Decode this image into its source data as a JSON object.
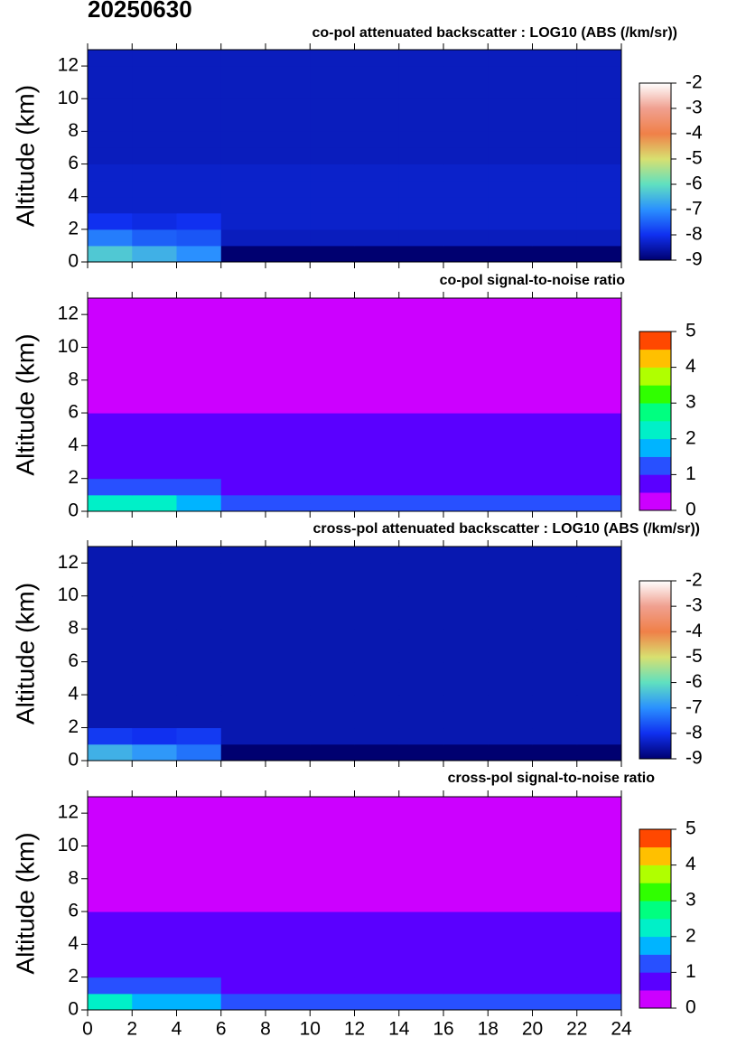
{
  "title": "20250630",
  "chart_data": [
    {
      "type": "heatmap",
      "title": "co-pol attenuated backscatter : LOG10 (ABS (/km/sr))",
      "ylabel": "Altitude (km)",
      "scale": "continuous",
      "show_xtick_labels": false,
      "xlim": [
        0,
        24
      ],
      "xticks": [
        0,
        2,
        4,
        6,
        8,
        10,
        12,
        14,
        16,
        18,
        20,
        22,
        24
      ],
      "ylim": [
        0,
        13
      ],
      "yticks": [
        0,
        2,
        4,
        6,
        8,
        10,
        12
      ],
      "xbins": [
        0,
        2,
        4,
        6,
        8,
        10,
        12,
        14,
        16,
        18,
        20,
        22,
        24
      ],
      "ybins": [
        0,
        1,
        2,
        3,
        4,
        5,
        6,
        7,
        8,
        9,
        10,
        11,
        12,
        13
      ],
      "zlim": [
        -9,
        -2
      ],
      "zticks": [
        -9,
        -8,
        -7,
        -6,
        -5,
        -4,
        -3,
        -2
      ],
      "colors": [
        "#000070",
        "#1030f0",
        "#2a90ff",
        "#60e0c0",
        "#d8e070",
        "#f08048",
        "#f0a090",
        "#ffffff"
      ],
      "z": [
        [
          -6.3,
          -6.6,
          -7.0,
          -9,
          -9,
          -9,
          -9,
          -9,
          -9,
          -9,
          -9,
          -9
        ],
        [
          -7.2,
          -7.5,
          -7.6,
          -8.4,
          -8.4,
          -8.4,
          -8.4,
          -8.4,
          -8.4,
          -8.4,
          -8.4,
          -8.4
        ],
        [
          -8.0,
          -8.1,
          -8.0,
          -8.3,
          -8.3,
          -8.3,
          -8.3,
          -8.3,
          -8.3,
          -8.3,
          -8.3,
          -8.3
        ],
        [
          -8.3,
          -8.3,
          -8.3,
          -8.3,
          -8.3,
          -8.3,
          -8.3,
          -8.3,
          -8.3,
          -8.3,
          -8.3,
          -8.3
        ],
        [
          -8.3,
          -8.3,
          -8.3,
          -8.3,
          -8.3,
          -8.3,
          -8.3,
          -8.3,
          -8.3,
          -8.3,
          -8.3,
          -8.3
        ],
        [
          -8.3,
          -8.3,
          -8.3,
          -8.3,
          -8.3,
          -8.3,
          -8.3,
          -8.3,
          -8.3,
          -8.3,
          -8.3,
          -8.3
        ],
        [
          -8.4,
          -8.4,
          -8.4,
          -8.4,
          -8.4,
          -8.4,
          -8.4,
          -8.4,
          -8.4,
          -8.4,
          -8.4,
          -8.4
        ],
        [
          -8.4,
          -8.4,
          -8.4,
          -8.4,
          -8.4,
          -8.4,
          -8.4,
          -8.4,
          -8.4,
          -8.4,
          -8.4,
          -8.4
        ],
        [
          -8.4,
          -8.4,
          -8.4,
          -8.4,
          -8.4,
          -8.4,
          -8.4,
          -8.4,
          -8.4,
          -8.4,
          -8.4,
          -8.4
        ],
        [
          -8.4,
          -8.4,
          -8.4,
          -8.4,
          -8.4,
          -8.4,
          -8.4,
          -8.4,
          -8.4,
          -8.4,
          -8.4,
          -8.4
        ],
        [
          -8.4,
          -8.4,
          -8.4,
          -8.4,
          -8.4,
          -8.4,
          -8.4,
          -8.4,
          -8.4,
          -8.4,
          -8.4,
          -8.4
        ],
        [
          -8.4,
          -8.4,
          -8.4,
          -8.4,
          -8.4,
          -8.4,
          -8.4,
          -8.4,
          -8.4,
          -8.4,
          -8.4,
          -8.4
        ],
        [
          -8.4,
          -8.4,
          -8.4,
          -8.4,
          -8.4,
          -8.4,
          -8.4,
          -8.4,
          -8.4,
          -8.4,
          -8.4,
          -8.4
        ]
      ]
    },
    {
      "type": "heatmap",
      "title": "co-pol signal-to-noise ratio",
      "ylabel": "Altitude (km)",
      "scale": "discrete",
      "show_xtick_labels": false,
      "xlim": [
        0,
        24
      ],
      "xticks": [
        0,
        2,
        4,
        6,
        8,
        10,
        12,
        14,
        16,
        18,
        20,
        22,
        24
      ],
      "ylim": [
        0,
        13
      ],
      "yticks": [
        0,
        2,
        4,
        6,
        8,
        10,
        12
      ],
      "xbins": [
        0,
        2,
        4,
        6,
        8,
        10,
        12,
        14,
        16,
        18,
        20,
        22,
        24
      ],
      "ybins": [
        0,
        1,
        2,
        3,
        4,
        5,
        6,
        7,
        8,
        9,
        10,
        11,
        12,
        13
      ],
      "zlim": [
        0,
        5
      ],
      "zticks": [
        0,
        1,
        2,
        3,
        4,
        5
      ],
      "colors": [
        "#cc00ff",
        "#5a00ff",
        "#2850ff",
        "#00b4ff",
        "#00f0c8",
        "#00ff80",
        "#30ff00",
        "#b0ff00",
        "#ffc000",
        "#ff4800"
      ],
      "z": [
        [
          2.3,
          2.2,
          1.8,
          1.1,
          1.1,
          1.1,
          1.1,
          1.1,
          1.1,
          1.1,
          1.1,
          1.1
        ],
        [
          1.3,
          1.2,
          1.2,
          0.9,
          0.9,
          0.9,
          0.9,
          0.9,
          0.9,
          0.9,
          0.9,
          0.9
        ],
        [
          0.9,
          0.9,
          0.9,
          0.9,
          0.9,
          0.9,
          0.9,
          0.9,
          0.9,
          0.9,
          0.9,
          0.9
        ],
        [
          0.8,
          0.8,
          0.8,
          0.8,
          0.8,
          0.8,
          0.8,
          0.8,
          0.8,
          0.8,
          0.8,
          0.8
        ],
        [
          0.7,
          0.7,
          0.7,
          0.7,
          0.7,
          0.7,
          0.7,
          0.7,
          0.7,
          0.7,
          0.7,
          0.7
        ],
        [
          0.6,
          0.6,
          0.6,
          0.6,
          0.6,
          0.6,
          0.6,
          0.6,
          0.6,
          0.6,
          0.6,
          0.6
        ],
        [
          0.4,
          0.4,
          0.4,
          0.4,
          0.4,
          0.4,
          0.4,
          0.4,
          0.4,
          0.4,
          0.4,
          0.4
        ],
        [
          0.3,
          0.3,
          0.3,
          0.3,
          0.3,
          0.3,
          0.3,
          0.3,
          0.3,
          0.3,
          0.3,
          0.3
        ],
        [
          0.3,
          0.3,
          0.3,
          0.3,
          0.3,
          0.3,
          0.3,
          0.3,
          0.3,
          0.3,
          0.3,
          0.3
        ],
        [
          0.2,
          0.2,
          0.2,
          0.2,
          0.2,
          0.2,
          0.2,
          0.2,
          0.2,
          0.2,
          0.2,
          0.2
        ],
        [
          0.2,
          0.2,
          0.2,
          0.2,
          0.2,
          0.2,
          0.2,
          0.2,
          0.2,
          0.2,
          0.2,
          0.2
        ],
        [
          0.2,
          0.2,
          0.2,
          0.2,
          0.2,
          0.2,
          0.2,
          0.2,
          0.2,
          0.2,
          0.2,
          0.2
        ],
        [
          0.2,
          0.2,
          0.2,
          0.2,
          0.2,
          0.2,
          0.2,
          0.2,
          0.2,
          0.2,
          0.2,
          0.2
        ]
      ]
    },
    {
      "type": "heatmap",
      "title": "cross-pol attenuated backscatter : LOG10 (ABS (/km/sr))",
      "ylabel": "Altitude (km)",
      "scale": "continuous",
      "show_xtick_labels": false,
      "xlim": [
        0,
        24
      ],
      "xticks": [
        0,
        2,
        4,
        6,
        8,
        10,
        12,
        14,
        16,
        18,
        20,
        22,
        24
      ],
      "ylim": [
        0,
        13
      ],
      "yticks": [
        0,
        2,
        4,
        6,
        8,
        10,
        12
      ],
      "xbins": [
        0,
        2,
        4,
        6,
        8,
        10,
        12,
        14,
        16,
        18,
        20,
        22,
        24
      ],
      "ybins": [
        0,
        1,
        2,
        3,
        4,
        5,
        6,
        7,
        8,
        9,
        10,
        11,
        12,
        13
      ],
      "zlim": [
        -9,
        -2
      ],
      "zticks": [
        -9,
        -8,
        -7,
        -6,
        -5,
        -4,
        -3,
        -2
      ],
      "colors": [
        "#000070",
        "#1030f0",
        "#2a90ff",
        "#60e0c0",
        "#d8e070",
        "#f08048",
        "#f0a090",
        "#ffffff"
      ],
      "z": [
        [
          -6.6,
          -6.9,
          -7.3,
          -9,
          -9,
          -9,
          -9,
          -9,
          -9,
          -9,
          -9,
          -9
        ],
        [
          -7.9,
          -8.0,
          -7.9,
          -8.5,
          -8.5,
          -8.5,
          -8.5,
          -8.5,
          -8.5,
          -8.5,
          -8.5,
          -8.5
        ],
        [
          -8.5,
          -8.5,
          -8.5,
          -8.5,
          -8.5,
          -8.5,
          -8.5,
          -8.5,
          -8.5,
          -8.5,
          -8.5,
          -8.5
        ],
        [
          -8.5,
          -8.5,
          -8.5,
          -8.5,
          -8.5,
          -8.5,
          -8.5,
          -8.5,
          -8.5,
          -8.5,
          -8.5,
          -8.5
        ],
        [
          -8.5,
          -8.5,
          -8.5,
          -8.5,
          -8.5,
          -8.5,
          -8.5,
          -8.5,
          -8.5,
          -8.5,
          -8.5,
          -8.5
        ],
        [
          -8.5,
          -8.5,
          -8.5,
          -8.5,
          -8.5,
          -8.5,
          -8.5,
          -8.5,
          -8.5,
          -8.5,
          -8.5,
          -8.5
        ],
        [
          -8.5,
          -8.5,
          -8.5,
          -8.5,
          -8.5,
          -8.5,
          -8.5,
          -8.5,
          -8.5,
          -8.5,
          -8.5,
          -8.5
        ],
        [
          -8.5,
          -8.5,
          -8.5,
          -8.5,
          -8.5,
          -8.5,
          -8.5,
          -8.5,
          -8.5,
          -8.5,
          -8.5,
          -8.5
        ],
        [
          -8.5,
          -8.5,
          -8.5,
          -8.5,
          -8.5,
          -8.5,
          -8.5,
          -8.5,
          -8.5,
          -8.5,
          -8.5,
          -8.5
        ],
        [
          -8.5,
          -8.5,
          -8.5,
          -8.5,
          -8.5,
          -8.5,
          -8.5,
          -8.5,
          -8.5,
          -8.5,
          -8.5,
          -8.5
        ],
        [
          -8.5,
          -8.5,
          -8.5,
          -8.5,
          -8.5,
          -8.5,
          -8.5,
          -8.5,
          -8.5,
          -8.5,
          -8.5,
          -8.5
        ],
        [
          -8.5,
          -8.5,
          -8.5,
          -8.5,
          -8.5,
          -8.5,
          -8.5,
          -8.5,
          -8.5,
          -8.5,
          -8.5,
          -8.5
        ],
        [
          -8.5,
          -8.5,
          -8.5,
          -8.5,
          -8.5,
          -8.5,
          -8.5,
          -8.5,
          -8.5,
          -8.5,
          -8.5,
          -8.5
        ]
      ]
    },
    {
      "type": "heatmap",
      "title": "cross-pol signal-to-noise ratio",
      "ylabel": "Altitude (km)",
      "scale": "discrete",
      "show_xtick_labels": true,
      "xlim": [
        0,
        24
      ],
      "xticks": [
        0,
        2,
        4,
        6,
        8,
        10,
        12,
        14,
        16,
        18,
        20,
        22,
        24
      ],
      "ylim": [
        0,
        13
      ],
      "yticks": [
        0,
        2,
        4,
        6,
        8,
        10,
        12
      ],
      "xbins": [
        0,
        2,
        4,
        6,
        8,
        10,
        12,
        14,
        16,
        18,
        20,
        22,
        24
      ],
      "ybins": [
        0,
        1,
        2,
        3,
        4,
        5,
        6,
        7,
        8,
        9,
        10,
        11,
        12,
        13
      ],
      "zlim": [
        0,
        5
      ],
      "zticks": [
        0,
        1,
        2,
        3,
        4,
        5
      ],
      "colors": [
        "#cc00ff",
        "#5a00ff",
        "#2850ff",
        "#00b4ff",
        "#00f0c8",
        "#00ff80",
        "#30ff00",
        "#b0ff00",
        "#ffc000",
        "#ff4800"
      ],
      "z": [
        [
          2.1,
          1.9,
          1.6,
          1.0,
          1.0,
          1.0,
          1.0,
          1.0,
          1.0,
          1.0,
          1.0,
          1.0
        ],
        [
          1.1,
          1.1,
          1.1,
          0.8,
          0.8,
          0.8,
          0.8,
          0.8,
          0.8,
          0.8,
          0.8,
          0.8
        ],
        [
          0.8,
          0.8,
          0.8,
          0.8,
          0.8,
          0.8,
          0.8,
          0.8,
          0.8,
          0.8,
          0.8,
          0.8
        ],
        [
          0.7,
          0.7,
          0.7,
          0.7,
          0.7,
          0.7,
          0.7,
          0.7,
          0.7,
          0.7,
          0.7,
          0.7
        ],
        [
          0.6,
          0.6,
          0.6,
          0.6,
          0.6,
          0.6,
          0.6,
          0.6,
          0.6,
          0.6,
          0.6,
          0.6
        ],
        [
          0.5,
          0.5,
          0.5,
          0.5,
          0.5,
          0.5,
          0.5,
          0.5,
          0.5,
          0.5,
          0.5,
          0.5
        ],
        [
          0.4,
          0.4,
          0.4,
          0.4,
          0.4,
          0.4,
          0.4,
          0.4,
          0.4,
          0.4,
          0.4,
          0.4
        ],
        [
          0.3,
          0.3,
          0.3,
          0.3,
          0.3,
          0.3,
          0.3,
          0.3,
          0.3,
          0.3,
          0.3,
          0.3
        ],
        [
          0.2,
          0.2,
          0.2,
          0.2,
          0.2,
          0.2,
          0.2,
          0.2,
          0.2,
          0.2,
          0.2,
          0.2
        ],
        [
          0.2,
          0.2,
          0.2,
          0.2,
          0.2,
          0.2,
          0.2,
          0.2,
          0.2,
          0.2,
          0.2,
          0.2
        ],
        [
          0.2,
          0.2,
          0.2,
          0.2,
          0.2,
          0.2,
          0.2,
          0.2,
          0.2,
          0.2,
          0.2,
          0.2
        ],
        [
          0.2,
          0.2,
          0.2,
          0.2,
          0.2,
          0.2,
          0.2,
          0.2,
          0.2,
          0.2,
          0.2,
          0.2
        ],
        [
          0.2,
          0.2,
          0.2,
          0.2,
          0.2,
          0.2,
          0.2,
          0.2,
          0.2,
          0.2,
          0.2,
          0.2
        ]
      ]
    }
  ]
}
